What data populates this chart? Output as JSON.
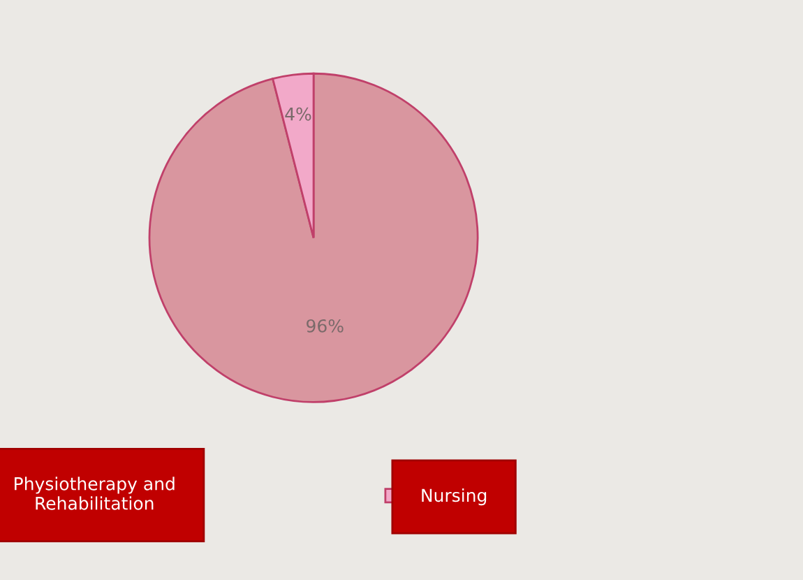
{
  "chart_data": {
    "type": "pie",
    "categories": [
      "Physiotherapy and\nRehabilitation",
      "Nursing"
    ],
    "values": [
      96,
      4
    ],
    "colors": [
      "#d9969f",
      "#f2a9c9"
    ],
    "value_labels": [
      "96%",
      "4%"
    ],
    "legend": "bottom"
  }
}
